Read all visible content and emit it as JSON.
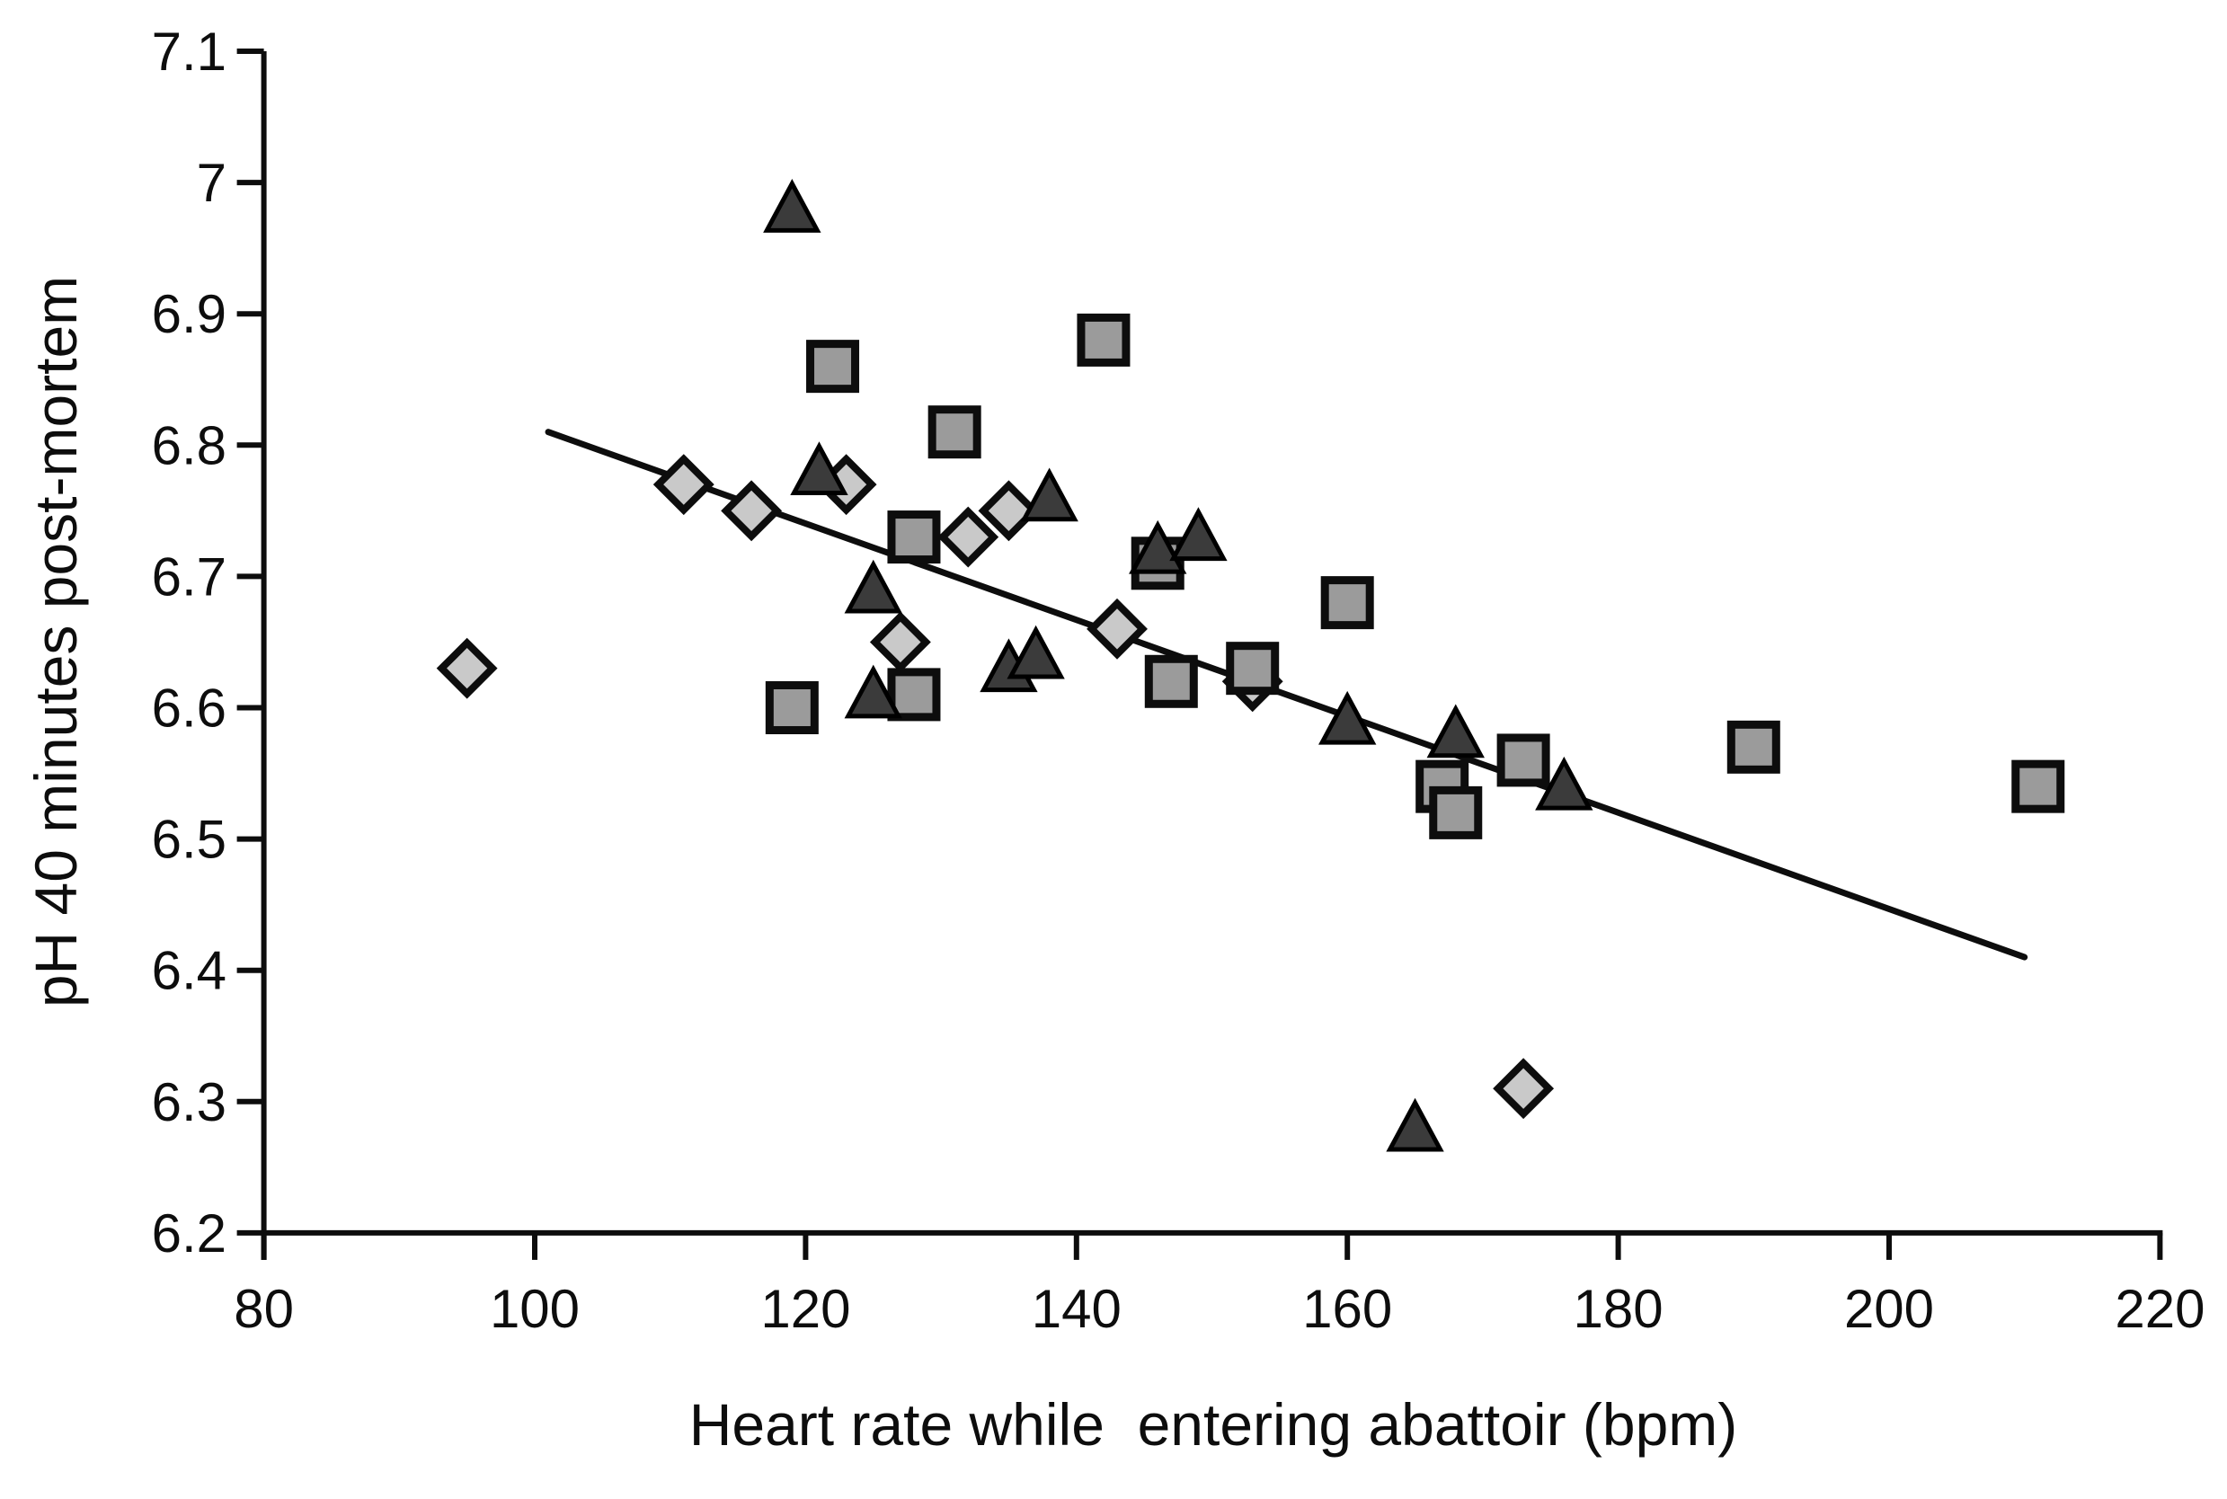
{
  "figure": {
    "background_color": "#ffffff",
    "text_color": "#0d0d0d"
  },
  "chart_data": {
    "type": "scatter",
    "title": "",
    "xlabel": "Heart rate while  entering abattoir (bpm)",
    "ylabel": "pH 40 minutes post-mortem",
    "xlim": [
      80,
      220
    ],
    "ylim": [
      6.2,
      7.1
    ],
    "grid": false,
    "legend_position": "none",
    "xticks": [
      {
        "v": 80,
        "label": "80"
      },
      {
        "v": 100,
        "label": "100"
      },
      {
        "v": 120,
        "label": "120"
      },
      {
        "v": 140,
        "label": "140"
      },
      {
        "v": 160,
        "label": "160"
      },
      {
        "v": 180,
        "label": "180"
      },
      {
        "v": 200,
        "label": "200"
      },
      {
        "v": 220,
        "label": "220"
      }
    ],
    "yticks": [
      {
        "v": 7.1,
        "label": "7.1"
      },
      {
        "v": 7.0,
        "label": "7"
      },
      {
        "v": 6.9,
        "label": "6.9"
      },
      {
        "v": 6.8,
        "label": "6.8"
      },
      {
        "v": 6.7,
        "label": "6.7"
      },
      {
        "v": 6.6,
        "label": "6.6"
      },
      {
        "v": 6.5,
        "label": "6.5"
      },
      {
        "v": 6.4,
        "label": "6.4"
      },
      {
        "v": 6.3,
        "label": "6.3"
      },
      {
        "v": 6.2,
        "label": "6.2"
      }
    ],
    "series": [
      {
        "name": "light-diamond-group",
        "marker": "diamond",
        "fill": "#c9c9c9",
        "stroke": "#0d0d0d",
        "points": [
          [
            95,
            6.63
          ],
          [
            111,
            6.77
          ],
          [
            116,
            6.75
          ],
          [
            123,
            6.77
          ],
          [
            127,
            6.65
          ],
          [
            132,
            6.73
          ],
          [
            135,
            6.75
          ],
          [
            143,
            6.66
          ],
          [
            153,
            6.62
          ],
          [
            173,
            6.31
          ]
        ]
      },
      {
        "name": "grey-square-group",
        "marker": "square",
        "fill": "#9b9b9b",
        "stroke": "#0d0d0d",
        "points": [
          [
            119,
            6.6
          ],
          [
            122,
            6.86
          ],
          [
            128,
            6.61
          ],
          [
            128,
            6.73
          ],
          [
            131,
            6.81
          ],
          [
            142,
            6.88
          ],
          [
            146,
            6.71
          ],
          [
            147,
            6.62
          ],
          [
            153,
            6.63
          ],
          [
            160,
            6.68
          ],
          [
            167,
            6.54
          ],
          [
            168,
            6.52
          ],
          [
            173,
            6.56
          ],
          [
            190,
            6.57
          ],
          [
            211,
            6.54
          ]
        ]
      },
      {
        "name": "dark-triangle-group",
        "marker": "triangle",
        "fill": "#3b3b3b",
        "stroke": "#000000",
        "points": [
          [
            119,
            6.98
          ],
          [
            121,
            6.78
          ],
          [
            125,
            6.69
          ],
          [
            125,
            6.61
          ],
          [
            135,
            6.63
          ],
          [
            137,
            6.64
          ],
          [
            138,
            6.76
          ],
          [
            146,
            6.72
          ],
          [
            149,
            6.73
          ],
          [
            160,
            6.59
          ],
          [
            168,
            6.58
          ],
          [
            176,
            6.54
          ],
          [
            165,
            6.28
          ]
        ]
      }
    ],
    "trendline": {
      "x1": 101,
      "y1": 6.81,
      "x2": 210,
      "y2": 6.41,
      "color": "#0d0d0d"
    }
  }
}
